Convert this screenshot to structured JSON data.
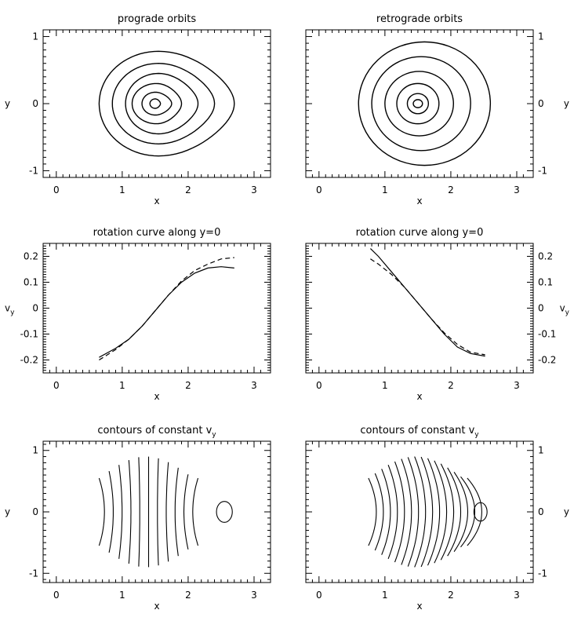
{
  "chart_data": [
    {
      "id": "prograde_orbits",
      "type": "line",
      "title": "prograde orbits",
      "xlabel": "x",
      "ylabel": "y",
      "xlim": [
        -0.2,
        3.25
      ],
      "ylim": [
        -1.1,
        1.1
      ],
      "xticks": [
        "0",
        "1",
        "2",
        "3"
      ],
      "yticks": [
        "-1",
        "0",
        "1"
      ],
      "series": [
        {
          "center": [
            1.55,
            0
          ],
          "left": 0.65,
          "right": 2.7,
          "height": 0.78
        },
        {
          "center": [
            1.55,
            0
          ],
          "left": 0.85,
          "right": 2.4,
          "height": 0.6
        },
        {
          "center": [
            1.55,
            0
          ],
          "left": 1.05,
          "right": 2.15,
          "height": 0.45
        },
        {
          "center": [
            1.52,
            0
          ],
          "left": 1.15,
          "right": 1.9,
          "height": 0.3
        },
        {
          "center": [
            1.5,
            0
          ],
          "left": 1.3,
          "right": 1.75,
          "height": 0.17
        },
        {
          "center": [
            1.5,
            0
          ],
          "left": 1.42,
          "right": 1.58,
          "height": 0.07
        }
      ]
    },
    {
      "id": "retrograde_orbits",
      "type": "line",
      "title": "retrograde orbits",
      "xlabel": "x",
      "ylabel": "y",
      "xlim": [
        -0.2,
        3.25
      ],
      "ylim": [
        -1.1,
        1.1
      ],
      "xticks": [
        "0",
        "1",
        "2",
        "3"
      ],
      "yticks": [
        "-1",
        "0",
        "1"
      ],
      "series": [
        {
          "center": [
            1.6,
            0
          ],
          "rx": 1.0,
          "ry": 0.92
        },
        {
          "center": [
            1.55,
            0
          ],
          "rx": 0.75,
          "ry": 0.7
        },
        {
          "center": [
            1.52,
            0
          ],
          "rx": 0.52,
          "ry": 0.48
        },
        {
          "center": [
            1.5,
            0
          ],
          "rx": 0.32,
          "ry": 0.3
        },
        {
          "center": [
            1.5,
            0
          ],
          "rx": 0.16,
          "ry": 0.15
        },
        {
          "center": [
            1.5,
            0
          ],
          "rx": 0.07,
          "ry": 0.06
        }
      ]
    },
    {
      "id": "rotation_curve_prograde",
      "type": "line",
      "title": "rotation curve along y=0",
      "xlabel": "x",
      "ylabel": "v",
      "ylabel_sub": "y",
      "xlim": [
        -0.2,
        3.25
      ],
      "ylim": [
        -0.25,
        0.25
      ],
      "xticks": [
        "0",
        "1",
        "2",
        "3"
      ],
      "yticks": [
        "0.2",
        "0.1",
        "0",
        "-0.1",
        "-0.2"
      ],
      "series": [
        {
          "style": "solid",
          "x": [
            0.65,
            0.9,
            1.1,
            1.3,
            1.5,
            1.7,
            1.9,
            2.1,
            2.3,
            2.5,
            2.7
          ],
          "y": [
            -0.19,
            -0.155,
            -0.12,
            -0.07,
            -0.01,
            0.05,
            0.1,
            0.135,
            0.155,
            0.16,
            0.155
          ]
        },
        {
          "style": "dashed",
          "x": [
            0.65,
            0.9,
            1.1,
            1.3,
            1.5,
            1.7,
            1.9,
            2.1,
            2.3,
            2.5,
            2.7
          ],
          "y": [
            -0.2,
            -0.16,
            -0.12,
            -0.07,
            -0.01,
            0.05,
            0.105,
            0.145,
            0.17,
            0.19,
            0.195
          ]
        }
      ]
    },
    {
      "id": "rotation_curve_retrograde",
      "type": "line",
      "title": "rotation curve along y=0",
      "xlabel": "x",
      "ylabel": "v",
      "ylabel_sub": "y",
      "xlim": [
        -0.2,
        3.25
      ],
      "ylim": [
        -0.25,
        0.25
      ],
      "xticks": [
        "0",
        "1",
        "2",
        "3"
      ],
      "yticks": [
        "0.2",
        "0.1",
        "0",
        "-0.1",
        "-0.2"
      ],
      "series": [
        {
          "style": "solid",
          "x": [
            0.78,
            0.9,
            1.1,
            1.3,
            1.5,
            1.7,
            1.9,
            2.1,
            2.3,
            2.52
          ],
          "y": [
            0.23,
            0.2,
            0.14,
            0.08,
            0.02,
            -0.04,
            -0.1,
            -0.15,
            -0.175,
            -0.185
          ]
        },
        {
          "style": "dashed",
          "x": [
            0.78,
            0.9,
            1.1,
            1.3,
            1.5,
            1.7,
            1.9,
            2.1,
            2.3,
            2.52
          ],
          "y": [
            0.19,
            0.17,
            0.13,
            0.08,
            0.02,
            -0.04,
            -0.095,
            -0.14,
            -0.17,
            -0.18
          ]
        }
      ]
    },
    {
      "id": "contours_prograde",
      "type": "line",
      "title": "contours of constant v",
      "title_sub": "y",
      "xlabel": "x",
      "ylabel": "y",
      "xlim": [
        -0.2,
        3.25
      ],
      "ylim": [
        -1.15,
        1.15
      ],
      "xticks": [
        "0",
        "1",
        "2",
        "3"
      ],
      "yticks": [
        "-1",
        "0",
        "1"
      ],
      "contour_x": [
        0.65,
        0.8,
        0.95,
        1.1,
        1.25,
        1.4,
        1.55,
        1.7,
        1.85,
        2.0,
        2.15
      ],
      "closed_contour": {
        "center": [
          2.55,
          0
        ],
        "rx": 0.12,
        "ry": 0.17
      }
    },
    {
      "id": "contours_retrograde",
      "type": "line",
      "title": "contours of constant v",
      "title_sub": "y",
      "xlabel": "x",
      "ylabel": "y",
      "xlim": [
        -0.2,
        3.25
      ],
      "ylim": [
        -1.15,
        1.15
      ],
      "xticks": [
        "0",
        "1",
        "2",
        "3"
      ],
      "yticks": [
        "-1",
        "0",
        "1"
      ],
      "contour_x": [
        0.75,
        0.85,
        0.95,
        1.05,
        1.15,
        1.25,
        1.35,
        1.45,
        1.55,
        1.65,
        1.75,
        1.85,
        1.95,
        2.05,
        2.15,
        2.25
      ],
      "closed_contour": {
        "center": [
          2.45,
          0
        ],
        "rx": 0.1,
        "ry": 0.15
      }
    }
  ]
}
